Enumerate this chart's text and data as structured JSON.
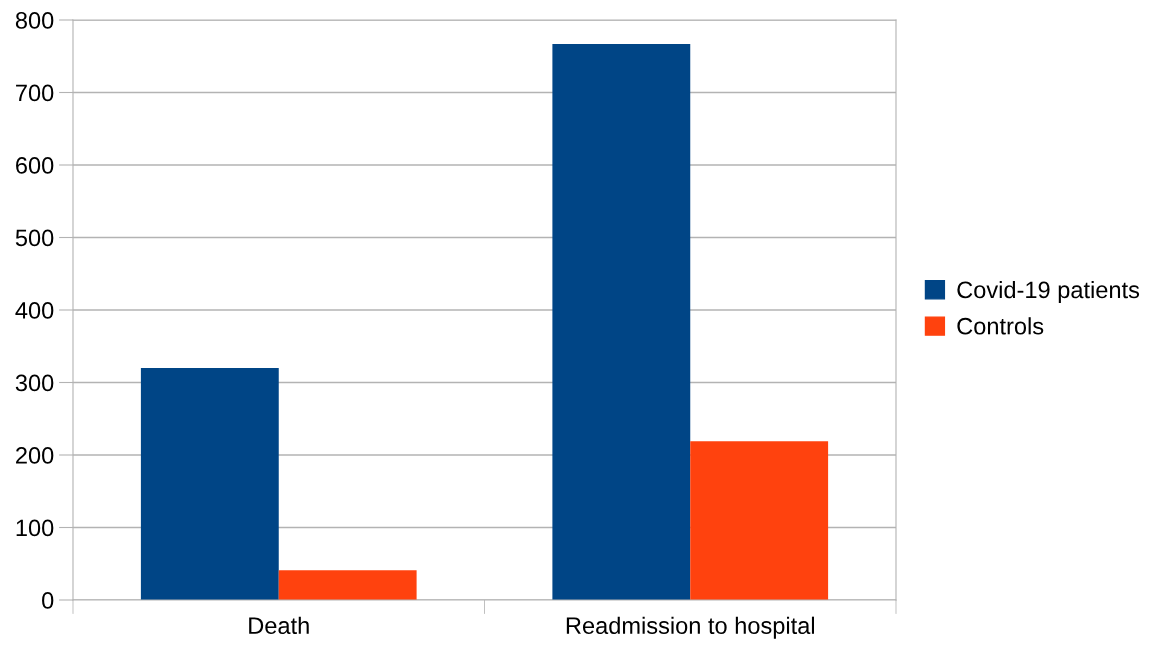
{
  "chart_data": {
    "type": "bar",
    "categories": [
      "Death",
      "Readmission to hospital"
    ],
    "series": [
      {
        "name": "Covid-19 patients",
        "color": "#004586",
        "values": [
          320,
          767
        ]
      },
      {
        "name": "Controls",
        "color": "#ff420e",
        "values": [
          41,
          219
        ]
      }
    ],
    "ylim": [
      0,
      800
    ],
    "yticks": [
      0,
      100,
      200,
      300,
      400,
      500,
      600,
      700,
      800
    ],
    "grid": "y",
    "legend": "right"
  }
}
